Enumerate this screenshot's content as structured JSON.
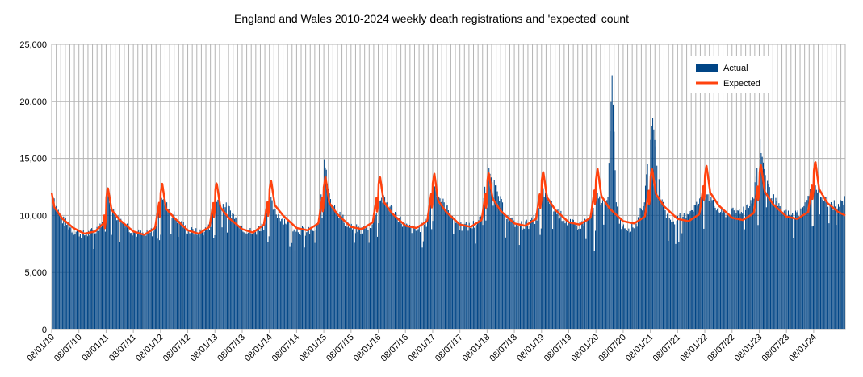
{
  "chart_data": {
    "type": "bar",
    "title": "England and Wales 2010-2024 weekly death registrations and 'expected' count",
    "xlabel": "",
    "ylabel": "",
    "ylim": [
      0,
      25000
    ],
    "yticks": [
      "0",
      "5,000",
      "10,000",
      "15,000",
      "20,000",
      "25,000"
    ],
    "xticks": [
      "08/01/10",
      "08/07/10",
      "08/01/11",
      "08/07/11",
      "08/01/12",
      "08/07/12",
      "08/01/13",
      "08/07/13",
      "08/01/14",
      "08/07/14",
      "08/01/15",
      "08/07/15",
      "08/01/16",
      "08/07/16",
      "08/01/17",
      "08/07/17",
      "08/01/18",
      "08/07/18",
      "08/01/19",
      "08/07/19",
      "08/01/20",
      "08/07/20",
      "08/01/21",
      "08/07/21",
      "08/01/22",
      "08/07/22",
      "08/01/23",
      "08/07/23",
      "08/01/24"
    ],
    "grid": true,
    "legend_position": "top-right",
    "series": [
      {
        "name": "Actual",
        "type": "bar",
        "color": "#004586",
        "anchors": [
          [
            2010.02,
            12200
          ],
          [
            2010.08,
            10800
          ],
          [
            2010.2,
            9600
          ],
          [
            2010.4,
            8700
          ],
          [
            2010.6,
            8300
          ],
          [
            2010.8,
            8600
          ],
          [
            2010.95,
            9600
          ],
          [
            2011.02,
            12400
          ],
          [
            2011.1,
            10500
          ],
          [
            2011.25,
            9700
          ],
          [
            2011.5,
            8600
          ],
          [
            2011.7,
            8200
          ],
          [
            2011.9,
            8700
          ],
          [
            2012.02,
            11800
          ],
          [
            2012.1,
            10900
          ],
          [
            2012.25,
            10000
          ],
          [
            2012.5,
            8700
          ],
          [
            2012.7,
            8400
          ],
          [
            2012.9,
            8900
          ],
          [
            2013.02,
            11500
          ],
          [
            2013.12,
            11000
          ],
          [
            2013.25,
            10600
          ],
          [
            2013.5,
            9000
          ],
          [
            2013.7,
            8400
          ],
          [
            2013.9,
            9200
          ],
          [
            2014.02,
            11400
          ],
          [
            2014.1,
            10300
          ],
          [
            2014.25,
            9700
          ],
          [
            2014.5,
            8800
          ],
          [
            2014.7,
            8500
          ],
          [
            2014.9,
            9000
          ],
          [
            2015.02,
            15200
          ],
          [
            2015.06,
            13000
          ],
          [
            2015.15,
            11200
          ],
          [
            2015.3,
            10000
          ],
          [
            2015.5,
            8900
          ],
          [
            2015.7,
            8700
          ],
          [
            2015.9,
            9300
          ],
          [
            2016.02,
            11500
          ],
          [
            2016.12,
            11300
          ],
          [
            2016.25,
            10600
          ],
          [
            2016.5,
            9000
          ],
          [
            2016.7,
            8700
          ],
          [
            2016.9,
            9400
          ],
          [
            2017.02,
            13000
          ],
          [
            2017.1,
            11800
          ],
          [
            2017.25,
            10700
          ],
          [
            2017.5,
            9100
          ],
          [
            2017.7,
            9000
          ],
          [
            2017.9,
            9700
          ],
          [
            2018.02,
            14800
          ],
          [
            2018.08,
            13600
          ],
          [
            2018.2,
            11800
          ],
          [
            2018.4,
            9600
          ],
          [
            2018.6,
            9100
          ],
          [
            2018.8,
            9300
          ],
          [
            2018.95,
            10000
          ],
          [
            2019.02,
            12300
          ],
          [
            2019.1,
            11500
          ],
          [
            2019.25,
            10500
          ],
          [
            2019.5,
            9300
          ],
          [
            2019.7,
            9100
          ],
          [
            2019.9,
            9800
          ],
          [
            2020.02,
            11700
          ],
          [
            2020.15,
            11000
          ],
          [
            2020.23,
            12000
          ],
          [
            2020.27,
            18500
          ],
          [
            2020.3,
            22000
          ],
          [
            2020.33,
            18500
          ],
          [
            2020.38,
            11000
          ],
          [
            2020.45,
            9300
          ],
          [
            2020.6,
            8900
          ],
          [
            2020.75,
            9200
          ],
          [
            2020.9,
            11500
          ],
          [
            2021.02,
            17500
          ],
          [
            2021.06,
            18400
          ],
          [
            2021.12,
            15000
          ],
          [
            2021.2,
            11500
          ],
          [
            2021.35,
            9500
          ],
          [
            2021.5,
            9600
          ],
          [
            2021.7,
            10300
          ],
          [
            2021.9,
            11100
          ],
          [
            2022.02,
            12200
          ],
          [
            2022.15,
            11000
          ],
          [
            2022.3,
            10200
          ],
          [
            2022.5,
            10200
          ],
          [
            2022.7,
            10500
          ],
          [
            2022.9,
            11500
          ],
          [
            2023.02,
            16500
          ],
          [
            2023.08,
            14500
          ],
          [
            2023.2,
            12000
          ],
          [
            2023.4,
            10400
          ],
          [
            2023.6,
            9900
          ],
          [
            2023.8,
            10400
          ],
          [
            2023.95,
            12000
          ],
          [
            2024.02,
            12800
          ],
          [
            2024.15,
            11600
          ],
          [
            2024.3,
            11000
          ],
          [
            2024.45,
            10800
          ],
          [
            2024.58,
            11400
          ]
        ]
      },
      {
        "name": "Expected",
        "type": "line",
        "color": "#ff420e",
        "anchors": [
          [
            2010.0,
            12000
          ],
          [
            2010.05,
            10700
          ],
          [
            2010.2,
            9700
          ],
          [
            2010.4,
            8900
          ],
          [
            2010.6,
            8400
          ],
          [
            2010.8,
            8600
          ],
          [
            2010.95,
            9300
          ],
          [
            2011.03,
            12500
          ],
          [
            2011.1,
            10500
          ],
          [
            2011.25,
            9600
          ],
          [
            2011.5,
            8600
          ],
          [
            2011.7,
            8300
          ],
          [
            2011.9,
            8900
          ],
          [
            2012.03,
            12800
          ],
          [
            2012.1,
            10600
          ],
          [
            2012.25,
            9800
          ],
          [
            2012.5,
            8700
          ],
          [
            2012.7,
            8400
          ],
          [
            2012.9,
            9000
          ],
          [
            2013.03,
            12900
          ],
          [
            2013.1,
            10700
          ],
          [
            2013.25,
            9800
          ],
          [
            2013.5,
            8800
          ],
          [
            2013.7,
            8500
          ],
          [
            2013.9,
            9200
          ],
          [
            2014.03,
            13100
          ],
          [
            2014.1,
            10900
          ],
          [
            2014.25,
            10000
          ],
          [
            2014.5,
            8900
          ],
          [
            2014.7,
            8700
          ],
          [
            2014.9,
            9300
          ],
          [
            2015.03,
            13400
          ],
          [
            2015.1,
            11100
          ],
          [
            2015.25,
            10100
          ],
          [
            2015.5,
            9000
          ],
          [
            2015.7,
            8800
          ],
          [
            2015.9,
            9400
          ],
          [
            2016.03,
            13500
          ],
          [
            2016.1,
            11200
          ],
          [
            2016.25,
            10200
          ],
          [
            2016.5,
            9100
          ],
          [
            2016.7,
            8900
          ],
          [
            2016.9,
            9500
          ],
          [
            2017.03,
            13700
          ],
          [
            2017.1,
            11300
          ],
          [
            2017.25,
            10300
          ],
          [
            2017.5,
            9200
          ],
          [
            2017.7,
            9000
          ],
          [
            2017.9,
            9600
          ],
          [
            2018.03,
            13800
          ],
          [
            2018.1,
            11500
          ],
          [
            2018.25,
            10400
          ],
          [
            2018.5,
            9300
          ],
          [
            2018.7,
            9100
          ],
          [
            2018.9,
            9700
          ],
          [
            2019.03,
            13900
          ],
          [
            2019.1,
            11600
          ],
          [
            2019.25,
            10500
          ],
          [
            2019.5,
            9400
          ],
          [
            2019.7,
            9200
          ],
          [
            2019.9,
            9800
          ],
          [
            2020.03,
            14100
          ],
          [
            2020.1,
            11700
          ],
          [
            2020.25,
            10600
          ],
          [
            2020.5,
            9500
          ],
          [
            2020.7,
            9300
          ],
          [
            2020.9,
            9900
          ],
          [
            2021.03,
            14200
          ],
          [
            2021.1,
            11900
          ],
          [
            2021.25,
            10800
          ],
          [
            2021.5,
            9700
          ],
          [
            2021.7,
            9500
          ],
          [
            2021.9,
            10100
          ],
          [
            2022.03,
            14400
          ],
          [
            2022.1,
            12000
          ],
          [
            2022.25,
            10900
          ],
          [
            2022.5,
            9800
          ],
          [
            2022.7,
            9600
          ],
          [
            2022.9,
            10200
          ],
          [
            2023.03,
            14500
          ],
          [
            2023.1,
            12100
          ],
          [
            2023.25,
            11000
          ],
          [
            2023.5,
            9900
          ],
          [
            2023.7,
            9700
          ],
          [
            2023.9,
            10300
          ],
          [
            2024.03,
            14800
          ],
          [
            2024.1,
            12300
          ],
          [
            2024.25,
            11100
          ],
          [
            2024.45,
            10300
          ],
          [
            2024.58,
            10000
          ]
        ]
      }
    ]
  }
}
